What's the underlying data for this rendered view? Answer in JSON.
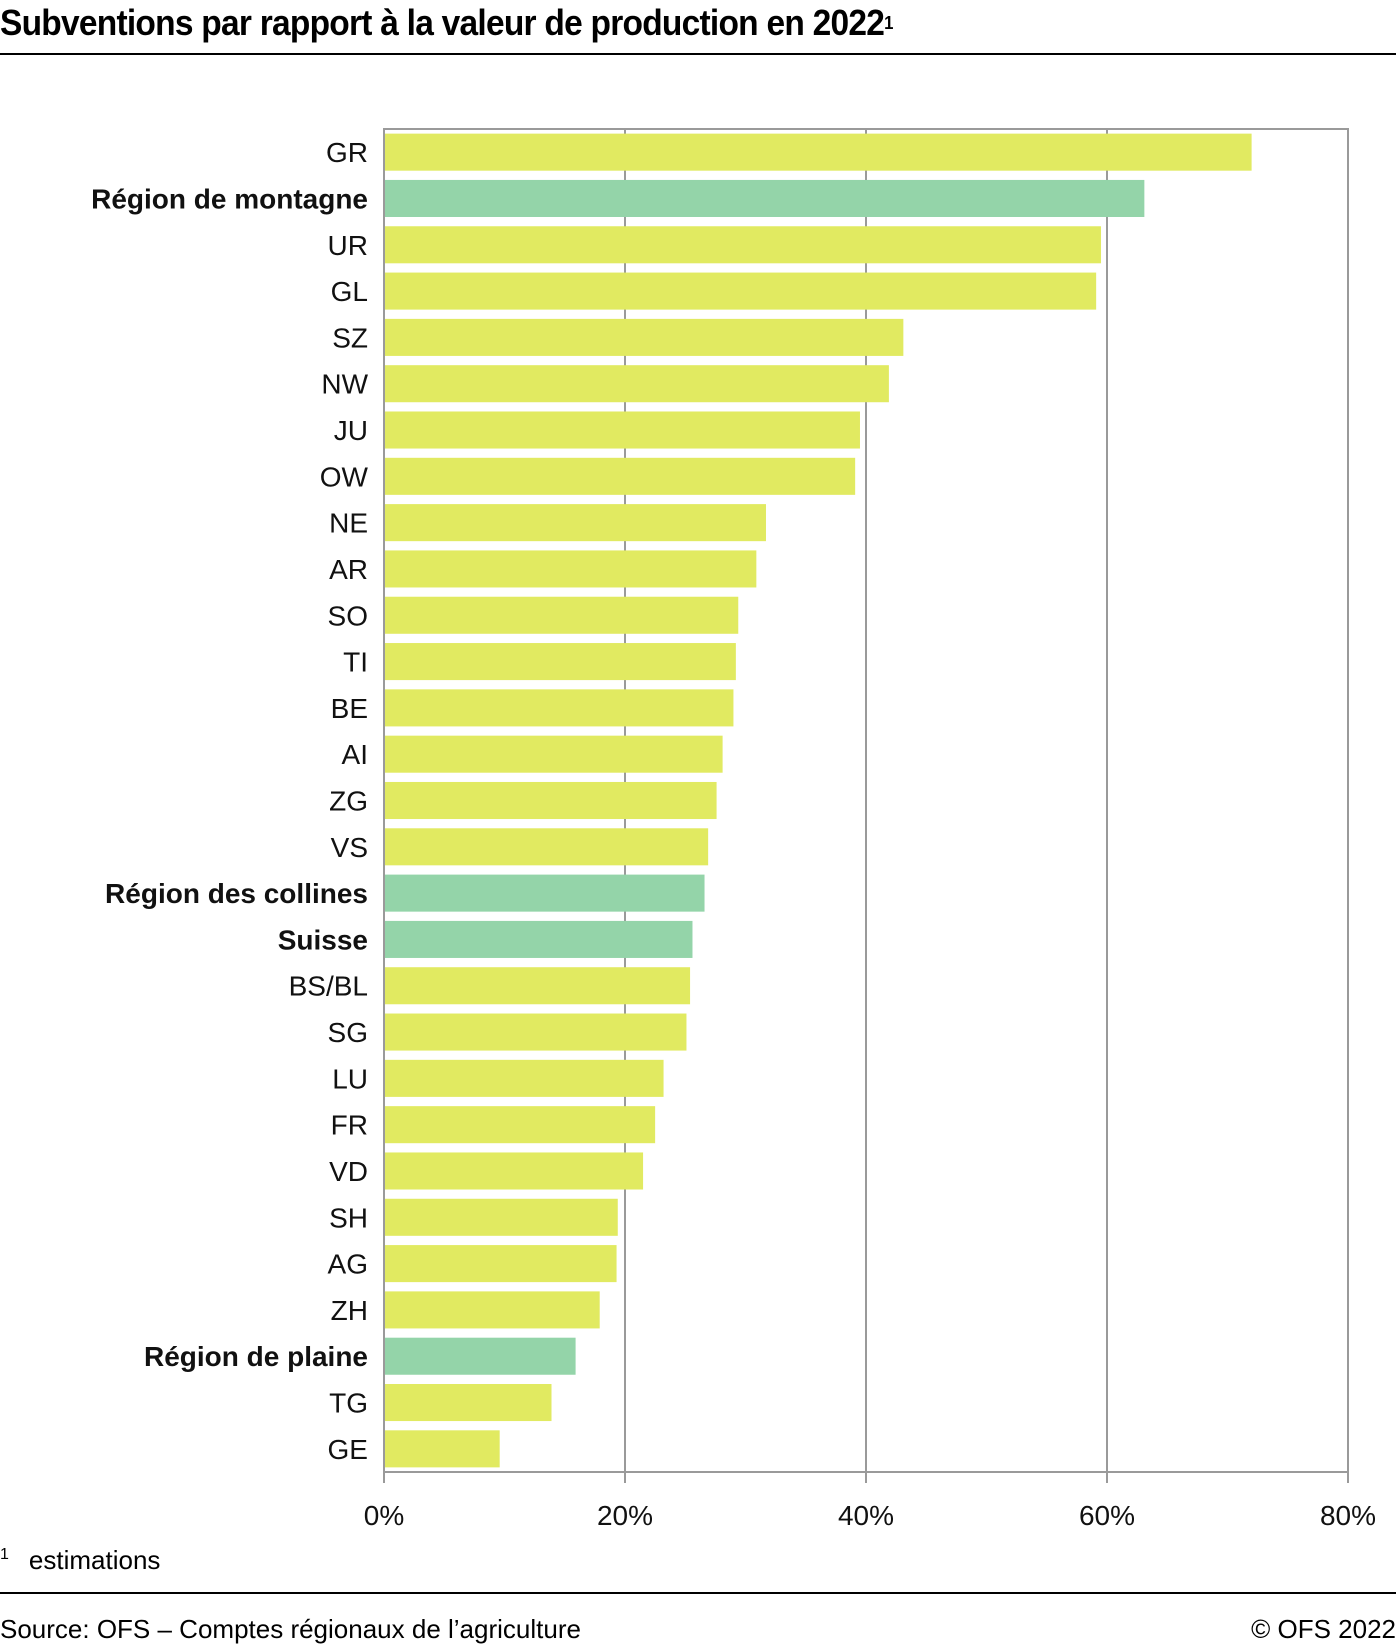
{
  "header": {
    "title": "Subventions par rapport à la valeur de production en 2022",
    "title_footnote_mark": "1"
  },
  "footer": {
    "footnote_mark": "1",
    "footnote_text": "estimations",
    "source": "Source: OFS – Comptes régionaux de l’agriculture",
    "copyright": "© OFS 2022"
  },
  "colors": {
    "canton": "#E1EA61",
    "region": "#94D4A9",
    "grid": "#9a9a9a"
  },
  "chart_data": {
    "type": "bar",
    "orientation": "horizontal",
    "title": "Subventions par rapport à la valeur de production en 2022",
    "xlabel": "",
    "ylabel": "",
    "xlim": [
      0,
      80
    ],
    "x_ticks": [
      0,
      20,
      40,
      60,
      80
    ],
    "x_tick_labels": [
      "0%",
      "20%",
      "40%",
      "60%",
      "80%"
    ],
    "grid": "vertical",
    "unit": "%",
    "categories": [
      "GR",
      "Région de montagne",
      "UR",
      "GL",
      "SZ",
      "NW",
      "JU",
      "OW",
      "NE",
      "AR",
      "SO",
      "TI",
      "BE",
      "AI",
      "ZG",
      "VS",
      "Région des collines",
      "Suisse",
      "BS/BL",
      "SG",
      "LU",
      "FR",
      "VD",
      "SH",
      "AG",
      "ZH",
      "Région de plaine",
      "TG",
      "GE"
    ],
    "values": [
      72.0,
      63.1,
      59.5,
      59.1,
      43.1,
      41.9,
      39.5,
      39.1,
      31.7,
      30.9,
      29.4,
      29.2,
      29.0,
      28.1,
      27.6,
      26.9,
      26.6,
      25.6,
      25.4,
      25.1,
      23.2,
      22.5,
      21.5,
      19.4,
      19.3,
      17.9,
      15.9,
      13.9,
      9.6
    ],
    "highlight": [
      false,
      true,
      false,
      false,
      false,
      false,
      false,
      false,
      false,
      false,
      false,
      false,
      false,
      false,
      false,
      false,
      true,
      true,
      false,
      false,
      false,
      false,
      false,
      false,
      false,
      false,
      true,
      false,
      false
    ]
  }
}
